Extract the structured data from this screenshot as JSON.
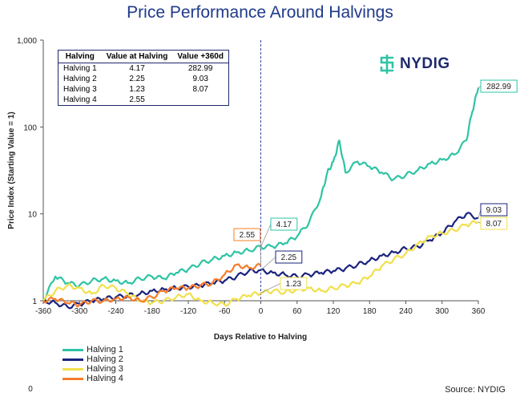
{
  "title": "Price Performance Around Halvings",
  "logo": {
    "text": "NYDIG",
    "icon": "nydig-logo-icon"
  },
  "source": "Source: NYDIG",
  "table": {
    "headers": [
      "Halving",
      "Value at Halving",
      "Value +360d"
    ],
    "rows": [
      [
        "Halving 1",
        "4.17",
        "282.99"
      ],
      [
        "Halving 2",
        "2.25",
        "9.03"
      ],
      [
        "Halving 3",
        "1.23",
        "8.07"
      ],
      [
        "Halving 4",
        "2.55",
        ""
      ]
    ]
  },
  "chart_data": {
    "type": "line",
    "title": "Price Performance Around Halvings",
    "xlabel": "Days Relative to Halving",
    "ylabel": "Price Index  (Starting Value = 1)",
    "y_scale": "log",
    "ylim": [
      1,
      1000
    ],
    "xlim": [
      -360,
      360
    ],
    "x_ticks": [
      "-360",
      "-300",
      "-240",
      "-180",
      "-120",
      "-60",
      "0",
      "60",
      "120",
      "180",
      "240",
      "300",
      "360"
    ],
    "y_ticks": [
      "1",
      "10",
      "100",
      "1,000"
    ],
    "extra_axis_label": "0",
    "vline_x": 0,
    "legend_position": "bottom-left",
    "series": [
      {
        "name": "Halving 1",
        "color": "#2ec4a4",
        "x": [
          -360,
          -340,
          -320,
          -300,
          -280,
          -260,
          -240,
          -220,
          -200,
          -180,
          -160,
          -140,
          -120,
          -100,
          -80,
          -60,
          -40,
          -20,
          0,
          20,
          40,
          60,
          80,
          100,
          110,
          120,
          130,
          140,
          160,
          180,
          200,
          220,
          240,
          260,
          280,
          300,
          320,
          340,
          350,
          360
        ],
        "y": [
          1.0,
          1.9,
          1.6,
          1.5,
          1.7,
          1.8,
          1.7,
          1.6,
          1.8,
          1.9,
          1.8,
          2.1,
          2.3,
          2.7,
          3.0,
          3.3,
          3.6,
          3.8,
          4.17,
          4.2,
          4.6,
          5.5,
          8.0,
          16,
          30,
          40,
          70,
          30,
          40,
          35,
          30,
          25,
          28,
          32,
          38,
          42,
          48,
          70,
          150,
          282.99
        ]
      },
      {
        "name": "Halving 2",
        "color": "#1a237e",
        "x": [
          -360,
          -340,
          -320,
          -300,
          -280,
          -260,
          -240,
          -220,
          -200,
          -180,
          -160,
          -140,
          -120,
          -100,
          -80,
          -60,
          -40,
          -20,
          0,
          20,
          40,
          60,
          80,
          100,
          120,
          140,
          160,
          180,
          200,
          220,
          240,
          260,
          280,
          300,
          320,
          340,
          360
        ],
        "y": [
          1.0,
          0.95,
          0.85,
          0.92,
          1.0,
          1.05,
          1.1,
          1.15,
          1.2,
          1.3,
          1.35,
          1.4,
          1.45,
          1.5,
          1.6,
          1.7,
          1.9,
          2.2,
          2.25,
          2.1,
          2.0,
          1.9,
          2.0,
          2.1,
          2.2,
          2.35,
          2.6,
          2.9,
          3.3,
          3.6,
          4.0,
          4.2,
          5.0,
          6.0,
          8.0,
          10.0,
          9.03
        ]
      },
      {
        "name": "Halving 3",
        "color": "#f1e04b",
        "x": [
          -360,
          -340,
          -320,
          -300,
          -280,
          -260,
          -240,
          -220,
          -200,
          -180,
          -160,
          -140,
          -120,
          -100,
          -80,
          -60,
          -40,
          -20,
          0,
          20,
          40,
          60,
          80,
          100,
          120,
          140,
          160,
          180,
          200,
          220,
          240,
          260,
          280,
          300,
          320,
          340,
          360
        ],
        "y": [
          1.0,
          1.3,
          1.5,
          1.4,
          1.2,
          1.5,
          1.4,
          1.2,
          1.0,
          0.95,
          1.0,
          1.1,
          1.2,
          1.0,
          0.95,
          0.9,
          1.05,
          1.15,
          1.23,
          1.3,
          1.25,
          1.35,
          1.4,
          1.3,
          1.4,
          1.5,
          1.6,
          1.9,
          2.5,
          3.0,
          3.5,
          4.5,
          5.5,
          6.0,
          6.5,
          7.5,
          8.07
        ]
      },
      {
        "name": "Halving 4",
        "color": "#f57c2a",
        "x": [
          -360,
          -340,
          -320,
          -300,
          -280,
          -260,
          -240,
          -220,
          -200,
          -180,
          -160,
          -140,
          -120,
          -100,
          -80,
          -60,
          -40,
          -20,
          0
        ],
        "y": [
          1.0,
          1.05,
          0.95,
          0.9,
          1.0,
          1.0,
          1.05,
          1.1,
          1.0,
          1.1,
          1.3,
          1.4,
          1.4,
          1.5,
          1.6,
          2.0,
          2.6,
          2.4,
          2.55
        ]
      }
    ],
    "callouts": [
      {
        "text": "282.99",
        "x": 360,
        "y": 282.99,
        "color": "#2ec4a4"
      },
      {
        "text": "9.03",
        "x": 360,
        "y": 9.03,
        "color": "#1a237e"
      },
      {
        "text": "8.07",
        "x": 360,
        "y": 8.07,
        "color": "#f1e04b"
      },
      {
        "text": "2.55",
        "x": 0,
        "y": 2.55,
        "color": "#f57c2a"
      },
      {
        "text": "4.17",
        "x": 0,
        "y": 4.17,
        "color": "#2ec4a4"
      },
      {
        "text": "2.25",
        "x": 0,
        "y": 2.25,
        "color": "#1a237e"
      },
      {
        "text": "1.23",
        "x": 0,
        "y": 1.23,
        "color": "#f1e04b"
      }
    ]
  }
}
